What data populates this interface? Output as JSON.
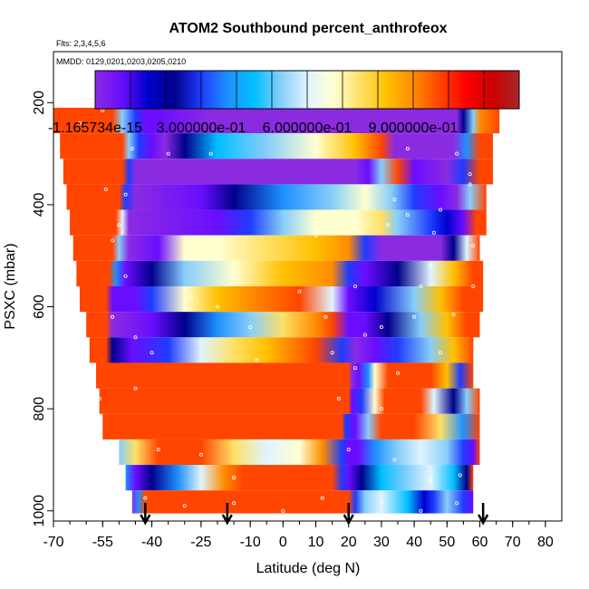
{
  "chart_data": {
    "type": "heatmap",
    "title": "ATOM2 Southbound percent_anthrofeox",
    "subtitle_flights": "Flts: 2,3,4,5,6",
    "subtitle_dates": "MMDD: 0129,0201,0203,0205,0210",
    "xlabel": "Latitude (deg N)",
    "ylabel": "PSXC (mbar)",
    "xlim": [
      -70,
      85
    ],
    "ylim": [
      1020,
      100
    ],
    "x_ticks": [
      -70,
      -55,
      -40,
      -25,
      -10,
      0,
      10,
      20,
      30,
      40,
      50,
      60,
      70,
      80
    ],
    "x_tick_labels": [
      "-70",
      "-55",
      "-40",
      "-25",
      "-10",
      "0",
      "10",
      "20",
      "30",
      "40",
      "50",
      "60",
      "70",
      "80"
    ],
    "y_ticks": [
      200,
      400,
      600,
      800,
      1000
    ],
    "y_tick_labels": [
      "200",
      "400",
      "600",
      "800",
      "1000"
    ],
    "colorbar": {
      "range": [
        0,
        1.2
      ],
      "tick_values": [
        0,
        0.3,
        0.6,
        0.9
      ],
      "tick_labels": [
        "-1.165734e-15",
        "3.000000e-01",
        "6.000000e-01",
        "9.000000e-01"
      ],
      "colors": [
        "#8a2be2",
        "#6a0dff",
        "#0000cd",
        "#00008b",
        "#1e3cff",
        "#1e90ff",
        "#00bfff",
        "#87cefa",
        "#e0f4ff",
        "#ffffd0",
        "#ffe066",
        "#ffc000",
        "#ff8c00",
        "#ff4500",
        "#ff0000",
        "#cc0000",
        "#a52a2a"
      ]
    },
    "arrows_latitude": [
      -42,
      -17,
      20,
      61
    ],
    "bands": [
      {
        "pmin": 210,
        "pmax": 260,
        "stops": [
          [
            -70,
            0.95
          ],
          [
            -52,
            0.95
          ],
          [
            -49,
            0.55
          ],
          [
            -45,
            0.3
          ],
          [
            -42,
            0.1
          ],
          [
            -38,
            0.05
          ],
          [
            -22,
            0.0
          ],
          [
            40,
            0.0
          ],
          [
            53,
            0.0
          ],
          [
            55,
            0.2
          ],
          [
            58,
            0.5
          ],
          [
            60,
            0.9
          ],
          [
            66,
            0.95
          ]
        ]
      },
      {
        "pmin": 260,
        "pmax": 310,
        "stops": [
          [
            -68,
            0.95
          ],
          [
            -49,
            0.95
          ],
          [
            -47,
            0.5
          ],
          [
            -44,
            0.3
          ],
          [
            -40,
            0.1
          ],
          [
            -36,
            0.03
          ],
          [
            -30,
            0.2
          ],
          [
            -20,
            0.45
          ],
          [
            -5,
            0.55
          ],
          [
            10,
            0.7
          ],
          [
            22,
            0.8
          ],
          [
            30,
            0.95
          ],
          [
            34,
            0.0
          ],
          [
            52,
            0.0
          ],
          [
            56,
            0.4
          ],
          [
            60,
            0.95
          ],
          [
            64,
            0.95
          ]
        ]
      },
      {
        "pmin": 310,
        "pmax": 360,
        "stops": [
          [
            -67,
            0.95
          ],
          [
            -49,
            0.95
          ],
          [
            -47,
            0.3
          ],
          [
            -45,
            0.0
          ],
          [
            22,
            0.0
          ],
          [
            26,
            0.1
          ],
          [
            30,
            0.5
          ],
          [
            35,
            0.95
          ],
          [
            40,
            0.05
          ],
          [
            50,
            0.0
          ],
          [
            55,
            0.3
          ],
          [
            60,
            0.95
          ],
          [
            64,
            0.95
          ]
        ]
      },
      {
        "pmin": 360,
        "pmax": 410,
        "stops": [
          [
            -66,
            0.95
          ],
          [
            -50,
            0.95
          ],
          [
            -48,
            0.3
          ],
          [
            -45,
            0.0
          ],
          [
            -25,
            0.05
          ],
          [
            -15,
            0.2
          ],
          [
            0,
            0.35
          ],
          [
            15,
            0.55
          ],
          [
            25,
            0.7
          ],
          [
            33,
            0.5
          ],
          [
            40,
            0.3
          ],
          [
            48,
            0.1
          ],
          [
            53,
            0.0
          ],
          [
            57,
            0.5
          ],
          [
            62,
            0.95
          ]
        ]
      },
      {
        "pmin": 410,
        "pmax": 460,
        "stops": [
          [
            -65,
            0.95
          ],
          [
            -51,
            0.95
          ],
          [
            -49,
            0.6
          ],
          [
            -47,
            0.0
          ],
          [
            -20,
            0.05
          ],
          [
            -10,
            0.3
          ],
          [
            0,
            0.55
          ],
          [
            10,
            0.65
          ],
          [
            22,
            0.7
          ],
          [
            30,
            0.75
          ],
          [
            35,
            0.55
          ],
          [
            45,
            0.3
          ],
          [
            50,
            0.15
          ],
          [
            55,
            0.05
          ],
          [
            59,
            0.95
          ],
          [
            62,
            0.95
          ]
        ]
      },
      {
        "pmin": 460,
        "pmax": 510,
        "stops": [
          [
            -64,
            0.95
          ],
          [
            -52,
            0.95
          ],
          [
            -50,
            0.5
          ],
          [
            -47,
            0.0
          ],
          [
            -38,
            0.05
          ],
          [
            -30,
            0.65
          ],
          [
            -20,
            0.7
          ],
          [
            -5,
            0.75
          ],
          [
            10,
            0.85
          ],
          [
            20,
            0.9
          ],
          [
            25,
            0.3
          ],
          [
            30,
            0.0
          ],
          [
            48,
            0.0
          ],
          [
            52,
            0.2
          ],
          [
            56,
            0.6
          ],
          [
            60,
            0.95
          ]
        ]
      },
      {
        "pmin": 510,
        "pmax": 560,
        "stops": [
          [
            -63,
            0.95
          ],
          [
            -53,
            0.95
          ],
          [
            -51,
            0.4
          ],
          [
            -48,
            0.1
          ],
          [
            -40,
            0.2
          ],
          [
            -30,
            0.5
          ],
          [
            -15,
            0.7
          ],
          [
            0,
            0.85
          ],
          [
            15,
            0.9
          ],
          [
            20,
            0.3
          ],
          [
            25,
            0.05
          ],
          [
            35,
            0.25
          ],
          [
            45,
            0.6
          ],
          [
            52,
            0.8
          ],
          [
            58,
            0.95
          ],
          [
            61,
            0.95
          ]
        ]
      },
      {
        "pmin": 560,
        "pmax": 610,
        "stops": [
          [
            -62,
            0.95
          ],
          [
            -54,
            0.95
          ],
          [
            -52,
            0.1
          ],
          [
            -45,
            0.05
          ],
          [
            -40,
            0.3
          ],
          [
            -30,
            0.65
          ],
          [
            -20,
            0.8
          ],
          [
            -10,
            0.9
          ],
          [
            5,
            0.95
          ],
          [
            15,
            0.6
          ],
          [
            20,
            0.05
          ],
          [
            28,
            0.15
          ],
          [
            40,
            0.55
          ],
          [
            48,
            0.8
          ],
          [
            55,
            0.95
          ],
          [
            61,
            0.95
          ]
        ]
      },
      {
        "pmin": 610,
        "pmax": 660,
        "stops": [
          [
            -60,
            0.95
          ],
          [
            -54,
            0.95
          ],
          [
            -52,
            0.0
          ],
          [
            -40,
            0.05
          ],
          [
            -30,
            0.2
          ],
          [
            -20,
            0.4
          ],
          [
            -10,
            0.55
          ],
          [
            0,
            0.75
          ],
          [
            10,
            0.9
          ],
          [
            15,
            0.95
          ],
          [
            20,
            0.1
          ],
          [
            25,
            0.05
          ],
          [
            32,
            0.2
          ],
          [
            42,
            0.5
          ],
          [
            50,
            0.8
          ],
          [
            56,
            0.95
          ],
          [
            60,
            0.95
          ]
        ]
      },
      {
        "pmin": 660,
        "pmax": 710,
        "stops": [
          [
            -59,
            0.95
          ],
          [
            -54,
            0.95
          ],
          [
            -52,
            0.2
          ],
          [
            -46,
            0.05
          ],
          [
            -35,
            0.3
          ],
          [
            -25,
            0.6
          ],
          [
            -15,
            0.75
          ],
          [
            -5,
            0.85
          ],
          [
            10,
            0.95
          ],
          [
            18,
            0.3
          ],
          [
            22,
            0.0
          ],
          [
            28,
            0.1
          ],
          [
            35,
            0.3
          ],
          [
            45,
            0.5
          ],
          [
            52,
            0.8
          ],
          [
            58,
            0.95
          ]
        ]
      },
      {
        "pmin": 710,
        "pmax": 760,
        "stops": [
          [
            -57,
            0.95
          ],
          [
            20,
            0.95
          ],
          [
            21,
            0.0
          ],
          [
            23,
            0.1
          ],
          [
            26,
            0.35
          ],
          [
            28,
            0.7
          ],
          [
            32,
            0.95
          ],
          [
            45,
            0.95
          ],
          [
            50,
            0.8
          ],
          [
            54,
            0.3
          ],
          [
            58,
            0.95
          ]
        ]
      },
      {
        "pmin": 760,
        "pmax": 810,
        "stops": [
          [
            -56,
            0.95
          ],
          [
            20,
            0.95
          ],
          [
            21,
            0.1
          ],
          [
            24,
            0.3
          ],
          [
            28,
            0.7
          ],
          [
            31,
            0.95
          ],
          [
            42,
            0.95
          ],
          [
            46,
            0.6
          ],
          [
            52,
            0.2
          ],
          [
            56,
            0.5
          ],
          [
            60,
            0.95
          ]
        ]
      },
      {
        "pmin": 810,
        "pmax": 860,
        "stops": [
          [
            -55,
            0.95
          ],
          [
            18,
            0.95
          ],
          [
            19,
            0.3
          ],
          [
            22,
            0.1
          ],
          [
            26,
            0.5
          ],
          [
            30,
            0.95
          ],
          [
            40,
            0.95
          ],
          [
            48,
            0.75
          ],
          [
            55,
            0.4
          ],
          [
            60,
            0.95
          ]
        ]
      },
      {
        "pmin": 860,
        "pmax": 910,
        "stops": [
          [
            -50,
            0.55
          ],
          [
            -45,
            0.75
          ],
          [
            -38,
            0.95
          ],
          [
            -25,
            0.95
          ],
          [
            -15,
            0.75
          ],
          [
            -5,
            0.6
          ],
          [
            5,
            0.7
          ],
          [
            12,
            0.9
          ],
          [
            18,
            0.3
          ],
          [
            20,
            0.05
          ],
          [
            23,
            0.1
          ],
          [
            28,
            0.35
          ],
          [
            35,
            0.5
          ],
          [
            42,
            0.6
          ],
          [
            50,
            0.5
          ],
          [
            55,
            0.3
          ],
          [
            58,
            0.05
          ],
          [
            60,
            0.95
          ]
        ]
      },
      {
        "pmin": 910,
        "pmax": 960,
        "stops": [
          [
            -48,
            0.4
          ],
          [
            -45,
            0.1
          ],
          [
            -40,
            0.2
          ],
          [
            -32,
            0.4
          ],
          [
            -25,
            0.6
          ],
          [
            -18,
            0.9
          ],
          [
            -12,
            0.95
          ],
          [
            15,
            0.95
          ],
          [
            18,
            0.3
          ],
          [
            20,
            0.05
          ],
          [
            24,
            0.2
          ],
          [
            30,
            0.45
          ],
          [
            38,
            0.55
          ],
          [
            45,
            0.6
          ],
          [
            52,
            0.45
          ],
          [
            56,
            0.2
          ],
          [
            58,
            0.95
          ]
        ]
      },
      {
        "pmin": 960,
        "pmax": 1005,
        "stops": [
          [
            -46,
            0.0
          ],
          [
            -44,
            0.4
          ],
          [
            -42,
            0.95
          ],
          [
            20,
            0.95
          ],
          [
            22,
            0.3
          ],
          [
            25,
            0.55
          ],
          [
            30,
            0.6
          ],
          [
            38,
            0.45
          ],
          [
            43,
            0.15
          ],
          [
            46,
            0.3
          ],
          [
            50,
            0.5
          ],
          [
            55,
            0.3
          ],
          [
            58,
            0.1
          ]
        ]
      }
    ],
    "markers": [
      [
        -55,
        215
      ],
      [
        -62,
        240
      ],
      [
        -46,
        290
      ],
      [
        -35,
        300
      ],
      [
        -22,
        300
      ],
      [
        38,
        290
      ],
      [
        53,
        300
      ],
      [
        57,
        340
      ],
      [
        -48,
        380
      ],
      [
        -54,
        370
      ],
      [
        34,
        390
      ],
      [
        38,
        420
      ],
      [
        48,
        410
      ],
      [
        57,
        360
      ],
      [
        -50,
        440
      ],
      [
        -52,
        470
      ],
      [
        10,
        460
      ],
      [
        32,
        440
      ],
      [
        46,
        455
      ],
      [
        58,
        480
      ],
      [
        45,
        520
      ],
      [
        -48,
        540
      ],
      [
        -28,
        580
      ],
      [
        -20,
        600
      ],
      [
        5,
        570
      ],
      [
        22,
        560
      ],
      [
        42,
        560
      ],
      [
        58,
        560
      ],
      [
        -52,
        620
      ],
      [
        -45,
        660
      ],
      [
        -10,
        640
      ],
      [
        13,
        620
      ],
      [
        25,
        655
      ],
      [
        30,
        640
      ],
      [
        40,
        620
      ],
      [
        52,
        615
      ],
      [
        -40,
        690
      ],
      [
        -8,
        705
      ],
      [
        15,
        690
      ],
      [
        22,
        720
      ],
      [
        35,
        730
      ],
      [
        48,
        690
      ],
      [
        -45,
        760
      ],
      [
        -56,
        780
      ],
      [
        17,
        780
      ],
      [
        30,
        800
      ],
      [
        -38,
        880
      ],
      [
        -25,
        890
      ],
      [
        -15,
        935
      ],
      [
        5,
        900
      ],
      [
        20,
        880
      ],
      [
        34,
        900
      ],
      [
        45,
        940
      ],
      [
        54,
        930
      ],
      [
        -42,
        975
      ],
      [
        -30,
        990
      ],
      [
        -15,
        985
      ],
      [
        0,
        1000
      ],
      [
        12,
        975
      ],
      [
        30,
        985
      ],
      [
        42,
        1000
      ],
      [
        53,
        985
      ]
    ]
  }
}
